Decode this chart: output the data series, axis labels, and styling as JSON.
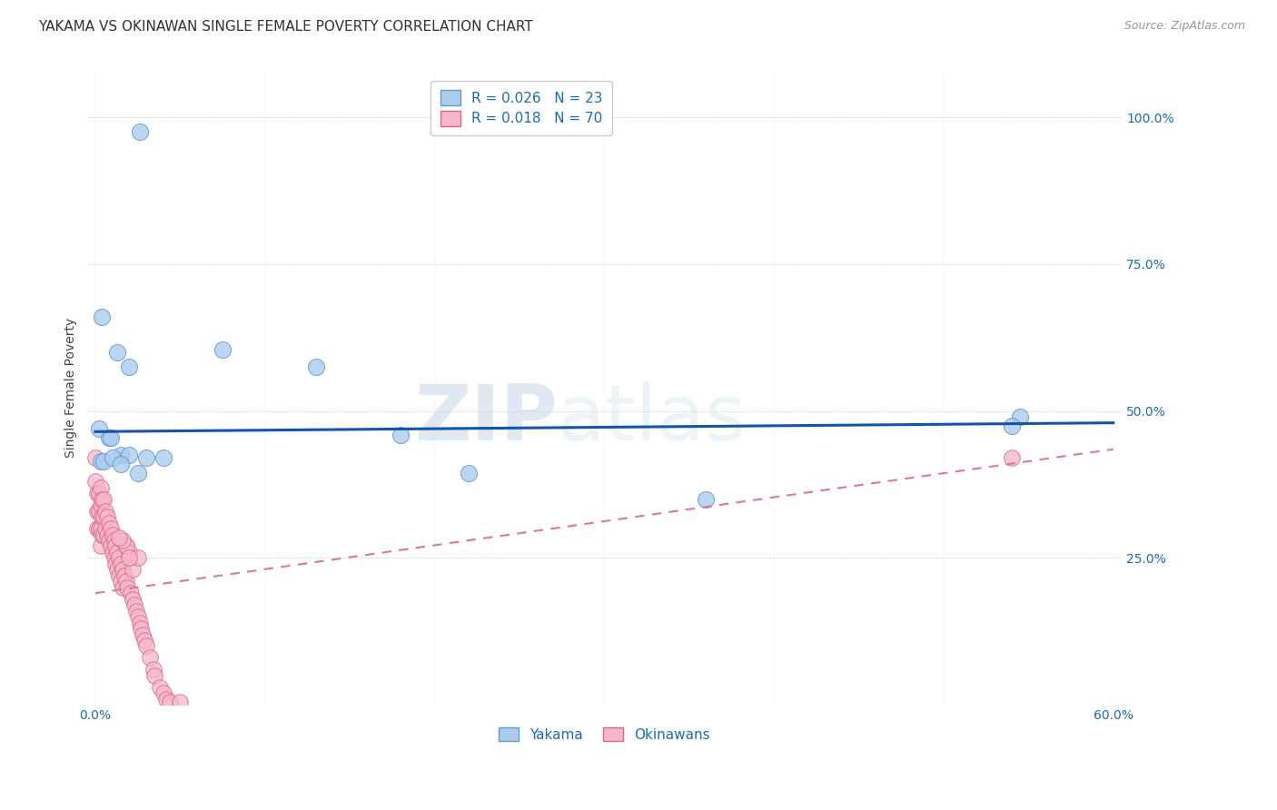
{
  "title": "YAKAMA VS OKINAWAN SINGLE FEMALE POVERTY CORRELATION CHART",
  "source": "Source: ZipAtlas.com",
  "ylabel_label": "Single Female Poverty",
  "x_tick_labels": [
    "0.0%",
    "",
    "",
    "",
    "",
    "",
    "60.0%"
  ],
  "x_tick_vals": [
    0.0,
    0.1,
    0.2,
    0.3,
    0.4,
    0.5,
    0.6
  ],
  "y_tick_labels_right": [
    "25.0%",
    "50.0%",
    "75.0%",
    "100.0%"
  ],
  "y_tick_vals": [
    0.25,
    0.5,
    0.75,
    1.0
  ],
  "xlim": [
    -0.005,
    0.605
  ],
  "ylim": [
    0.0,
    1.08
  ],
  "legend_r1": "R = 0.026   N = 23",
  "legend_r2": "R = 0.018   N = 70",
  "yakama_x": [
    0.026,
    0.004,
    0.013,
    0.02,
    0.075,
    0.13,
    0.002,
    0.008,
    0.009,
    0.015,
    0.02,
    0.18,
    0.36,
    0.545,
    0.003,
    0.005,
    0.01,
    0.015,
    0.025,
    0.22,
    0.54,
    0.03,
    0.04
  ],
  "yakama_y": [
    0.975,
    0.66,
    0.6,
    0.575,
    0.605,
    0.575,
    0.47,
    0.455,
    0.455,
    0.425,
    0.425,
    0.46,
    0.35,
    0.49,
    0.415,
    0.415,
    0.42,
    0.41,
    0.395,
    0.395,
    0.475,
    0.42,
    0.42
  ],
  "okinawa_x": [
    0.0,
    0.0,
    0.001,
    0.001,
    0.001,
    0.002,
    0.002,
    0.002,
    0.003,
    0.003,
    0.003,
    0.003,
    0.004,
    0.004,
    0.004,
    0.005,
    0.005,
    0.005,
    0.006,
    0.006,
    0.007,
    0.007,
    0.008,
    0.008,
    0.009,
    0.009,
    0.01,
    0.01,
    0.011,
    0.011,
    0.012,
    0.012,
    0.013,
    0.013,
    0.014,
    0.014,
    0.015,
    0.015,
    0.016,
    0.016,
    0.017,
    0.018,
    0.018,
    0.019,
    0.02,
    0.021,
    0.022,
    0.022,
    0.023,
    0.024,
    0.025,
    0.025,
    0.026,
    0.027,
    0.028,
    0.029,
    0.03,
    0.032,
    0.034,
    0.035,
    0.038,
    0.04,
    0.042,
    0.044,
    0.05,
    0.018,
    0.016,
    0.54,
    0.02,
    0.014
  ],
  "okinawa_y": [
    0.42,
    0.38,
    0.36,
    0.33,
    0.3,
    0.36,
    0.33,
    0.3,
    0.37,
    0.34,
    0.3,
    0.27,
    0.35,
    0.32,
    0.29,
    0.35,
    0.32,
    0.29,
    0.33,
    0.3,
    0.32,
    0.29,
    0.31,
    0.28,
    0.3,
    0.27,
    0.29,
    0.26,
    0.28,
    0.25,
    0.27,
    0.24,
    0.26,
    0.23,
    0.25,
    0.22,
    0.24,
    0.21,
    0.23,
    0.2,
    0.22,
    0.27,
    0.21,
    0.2,
    0.26,
    0.19,
    0.18,
    0.23,
    0.17,
    0.16,
    0.15,
    0.25,
    0.14,
    0.13,
    0.12,
    0.11,
    0.1,
    0.08,
    0.06,
    0.05,
    0.03,
    0.02,
    0.01,
    0.005,
    0.005,
    0.27,
    0.28,
    0.42,
    0.25,
    0.285
  ],
  "yakama_color": "#aaccee",
  "okinawa_color": "#f5b8c8",
  "yakama_edge": "#6699cc",
  "okinawa_edge": "#dd6688",
  "trend_yakama_color": "#1155aa",
  "trend_okinawa_color": "#dd7799",
  "background_color": "#ffffff",
  "watermark_zip": "ZIP",
  "watermark_atlas": "atlas",
  "title_fontsize": 11,
  "axis_label_fontsize": 10,
  "tick_fontsize": 10,
  "source_fontsize": 9
}
